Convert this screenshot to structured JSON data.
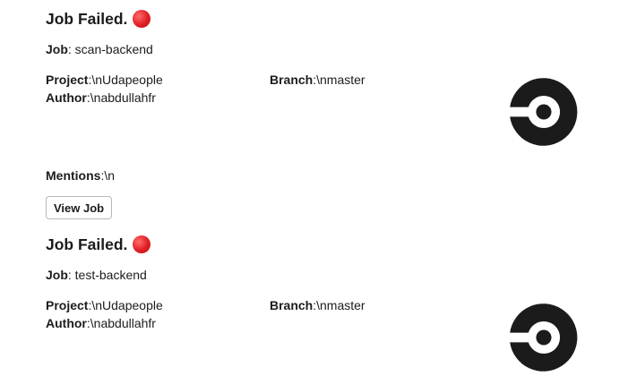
{
  "messages": [
    {
      "title": "Job Failed.",
      "status_icon": "red-circle-icon",
      "job_label": "Job",
      "job_value": ": scan-backend",
      "project_label": "Project",
      "project_value": ":\\nUdapeople",
      "branch_label": "Branch",
      "branch_value": ":\\nmaster",
      "author_label": "Author",
      "author_value": ":\\nabdullahfr",
      "mentions_label": "Mentions",
      "mentions_value": ":\\n",
      "button_label": "View Job",
      "logo_icon": "circleci-logo-icon"
    },
    {
      "title": "Job Failed.",
      "status_icon": "red-circle-icon",
      "job_label": "Job",
      "job_value": ": test-backend",
      "project_label": "Project",
      "project_value": ":\\nUdapeople",
      "branch_label": "Branch",
      "branch_value": ":\\nmaster",
      "author_label": "Author",
      "author_value": ":\\nabdullahfr",
      "logo_icon": "circleci-logo-icon"
    }
  ],
  "colors": {
    "text": "#1d1c1d",
    "status_red": "#e01e24",
    "logo": "#1b1b1b",
    "button_border": "#b8b8b8"
  }
}
